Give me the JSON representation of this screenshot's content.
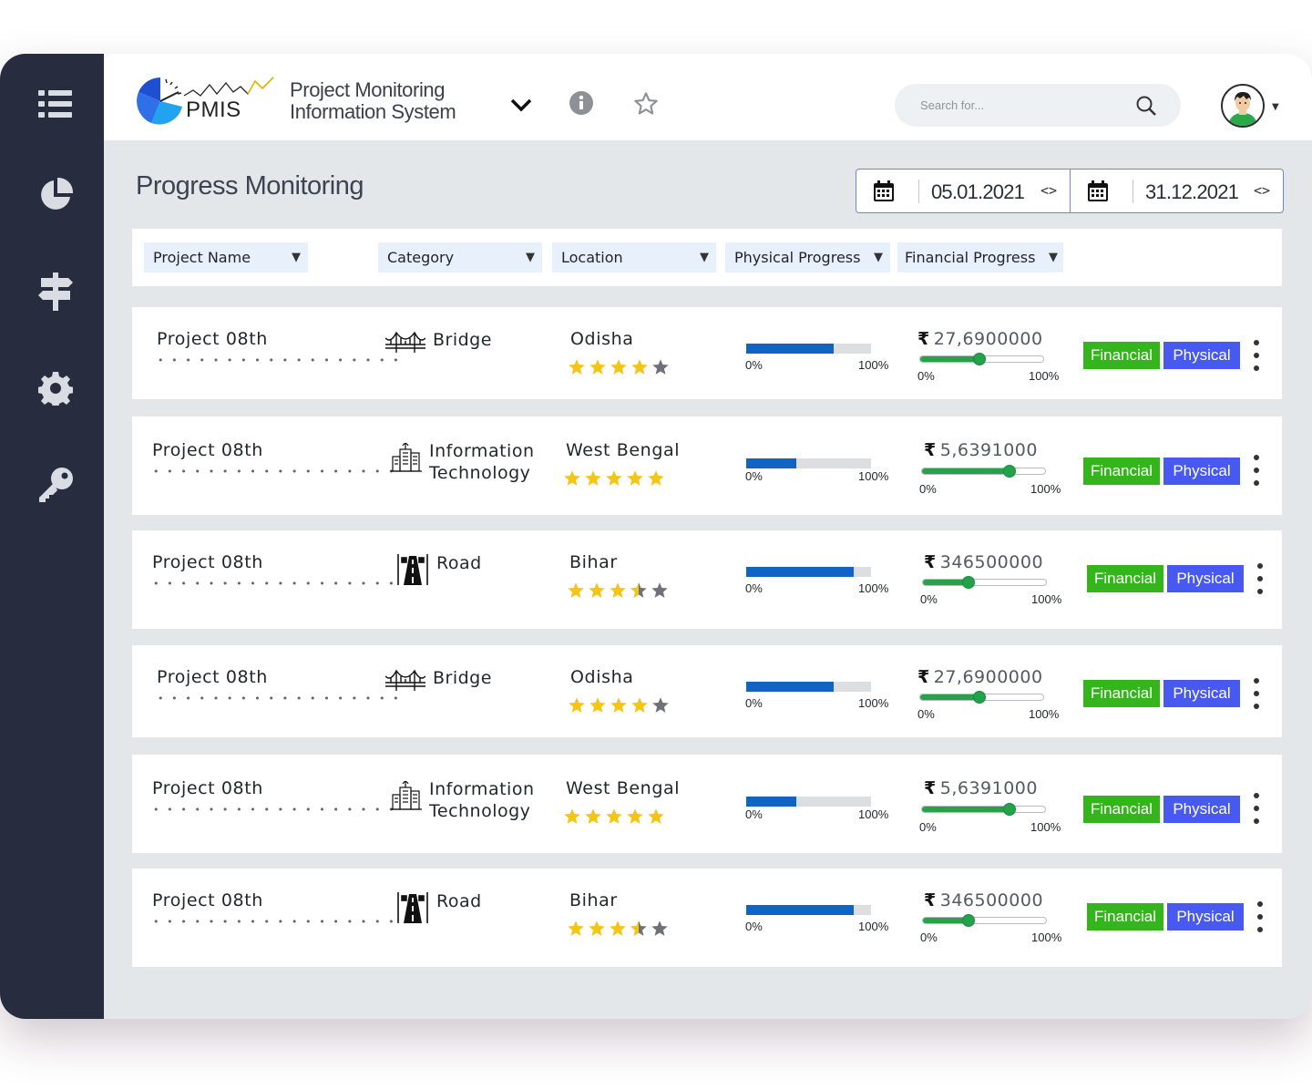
{
  "app": {
    "logo_text": "PMIS",
    "title_line1": "Project Monitoring",
    "title_line2": "Information System"
  },
  "search": {
    "placeholder": "Search for..."
  },
  "page": {
    "title": "Progress Monitoring",
    "date_from": "05.01.2021",
    "date_to": "31.12.2021"
  },
  "filters": [
    {
      "label": "Project Name"
    },
    {
      "label": "Category"
    },
    {
      "label": "Location"
    },
    {
      "label": "Physical Progress"
    },
    {
      "label": "Financial Progress"
    }
  ],
  "rows": [
    {
      "name": "Project 08th",
      "category_line1": "Bridge",
      "category_line2": "",
      "category_icon": "bridge-icon",
      "location": "Odisha",
      "rating": 4,
      "physical_progress": 0.7,
      "physical_min": "0%",
      "physical_max": "100%",
      "amount": "27,6900000",
      "financial_progress": 0.48,
      "financial_min": "0%",
      "financial_max": "100%",
      "financial_label": "Financial",
      "physical_label": "Physical"
    },
    {
      "name": "Project 08th",
      "category_line1": "Information",
      "category_line2": "Technology",
      "category_icon": "building-icon",
      "location": "West Bengal",
      "rating": 5,
      "physical_progress": 0.4,
      "physical_min": "0%",
      "physical_max": "100%",
      "amount": "5,6391000",
      "financial_progress": 0.71,
      "financial_min": "0%",
      "financial_max": "100%",
      "financial_label": "Financial",
      "physical_label": "Physical"
    },
    {
      "name": "Project 08th",
      "category_line1": "Road",
      "category_line2": "",
      "category_icon": "road-icon",
      "location": "Bihar",
      "rating": 3.5,
      "physical_progress": 0.86,
      "physical_min": "0%",
      "physical_max": "100%",
      "amount": "346500000",
      "financial_progress": 0.37,
      "financial_min": "0%",
      "financial_max": "100%",
      "financial_label": "Financial",
      "physical_label": "Physical"
    },
    {
      "name": "Project 08th",
      "category_line1": "Bridge",
      "category_line2": "",
      "category_icon": "bridge-icon",
      "location": "Odisha",
      "rating": 4,
      "physical_progress": 0.7,
      "physical_min": "0%",
      "physical_max": "100%",
      "amount": "27,6900000",
      "financial_progress": 0.48,
      "financial_min": "0%",
      "financial_max": "100%",
      "financial_label": "Financial",
      "physical_label": "Physical"
    },
    {
      "name": "Project 08th",
      "category_line1": "Information",
      "category_line2": "Technology",
      "category_icon": "building-icon",
      "location": "West Bengal",
      "rating": 5,
      "physical_progress": 0.4,
      "physical_min": "0%",
      "physical_max": "100%",
      "amount": "5,6391000",
      "financial_progress": 0.71,
      "financial_min": "0%",
      "financial_max": "100%",
      "financial_label": "Financial",
      "physical_label": "Physical"
    },
    {
      "name": "Project 08th",
      "category_line1": "Road",
      "category_line2": "",
      "category_icon": "road-icon",
      "location": "Bihar",
      "rating": 3.5,
      "physical_progress": 0.86,
      "physical_min": "0%",
      "physical_max": "100%",
      "amount": "346500000",
      "financial_progress": 0.37,
      "financial_min": "0%",
      "financial_max": "100%",
      "financial_label": "Financial",
      "physical_label": "Physical"
    }
  ],
  "colors": {
    "sidebar": "#272d3f",
    "physical_bar": "#1164c4",
    "financial_slider": "#22a34a",
    "financial_button": "#35b51c",
    "physical_button": "#4759f0",
    "star": "#f4c514"
  }
}
